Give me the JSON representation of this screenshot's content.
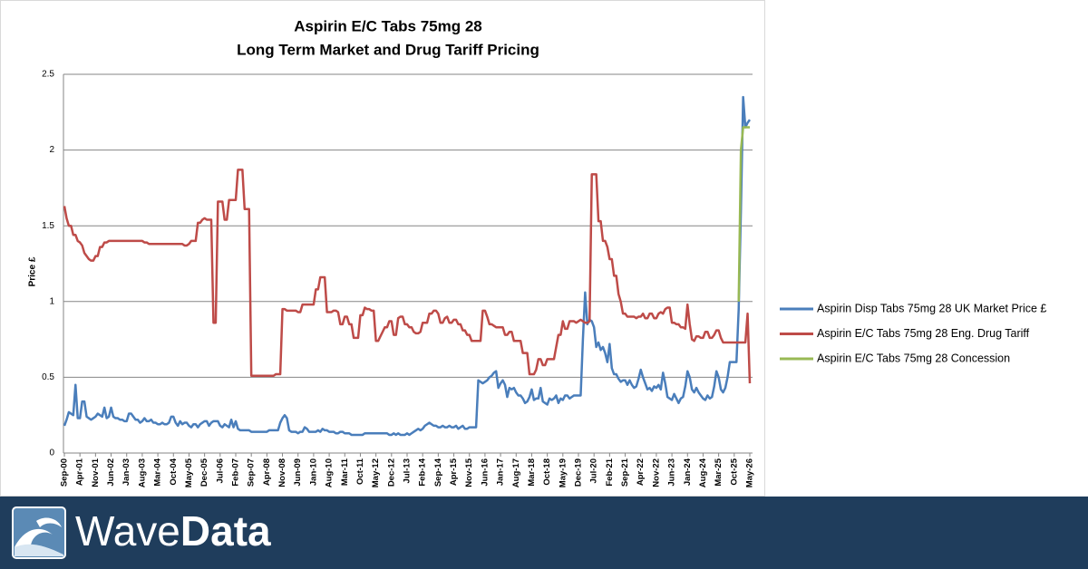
{
  "chart_data": {
    "type": "line",
    "title": [
      "Aspirin E/C Tabs 75mg 28",
      "Long Term Market and Drug Tariff Pricing"
    ],
    "y_label": "Price £",
    "ylim": [
      0,
      2.5
    ],
    "yticks": [
      0,
      0.5,
      1,
      1.5,
      2,
      2.5
    ],
    "grid": true,
    "legend": "right",
    "categories": [
      "Sep-00",
      null,
      null,
      null,
      null,
      null,
      null,
      "Apr-01",
      null,
      null,
      null,
      null,
      null,
      null,
      "Nov-01",
      null,
      null,
      null,
      null,
      null,
      null,
      "Jun-02",
      null,
      null,
      null,
      null,
      null,
      null,
      "Jan-03",
      null,
      null,
      null,
      null,
      null,
      null,
      "Aug-03",
      null,
      null,
      null,
      null,
      null,
      null,
      "Mar-04",
      null,
      null,
      null,
      null,
      null,
      null,
      "Oct-04",
      null,
      null,
      null,
      null,
      null,
      null,
      "May-05",
      null,
      null,
      null,
      null,
      null,
      null,
      "Dec-05",
      null,
      null,
      null,
      null,
      null,
      null,
      "Jul-06",
      null,
      null,
      null,
      null,
      null,
      null,
      "Feb-07",
      null,
      null,
      null,
      null,
      null,
      null,
      "Sep-07",
      null,
      null,
      null,
      null,
      null,
      null,
      "Apr-08",
      null,
      null,
      null,
      null,
      null,
      null,
      "Nov-08",
      null,
      null,
      null,
      null,
      null,
      null,
      "Jun-09",
      null,
      null,
      null,
      null,
      null,
      null,
      "Jan-10",
      null,
      null,
      null,
      null,
      null,
      null,
      "Aug-10",
      null,
      null,
      null,
      null,
      null,
      null,
      "Mar-11",
      null,
      null,
      null,
      null,
      null,
      null,
      "Oct-11",
      null,
      null,
      null,
      null,
      null,
      null,
      "May-12",
      null,
      null,
      null,
      null,
      null,
      null,
      "Dec-12",
      null,
      null,
      null,
      null,
      null,
      null,
      "Jul-13",
      null,
      null,
      null,
      null,
      null,
      null,
      "Feb-14",
      null,
      null,
      null,
      null,
      null,
      null,
      "Sep-14",
      null,
      null,
      null,
      null,
      null,
      null,
      "Apr-15",
      null,
      null,
      null,
      null,
      null,
      null,
      "Nov-15",
      null,
      null,
      null,
      null,
      null,
      null,
      "Jun-16",
      null,
      null,
      null,
      null,
      null,
      null,
      "Jan-17",
      null,
      null,
      null,
      null,
      null,
      null,
      "Aug-17",
      null,
      null,
      null,
      null,
      null,
      null,
      "Mar-18",
      null,
      null,
      null,
      null,
      null,
      null,
      "Oct-18",
      null,
      null,
      null,
      null,
      null,
      null,
      "May-19",
      null,
      null,
      null,
      null,
      null,
      null,
      "Dec-19",
      null,
      null,
      null,
      null,
      null,
      null,
      "Jul-20",
      null,
      null,
      null,
      null,
      null,
      null,
      "Feb-21",
      null,
      null,
      null,
      null,
      null,
      null,
      "Sep-21",
      null,
      null,
      null,
      null,
      null,
      null,
      "Apr-22",
      null,
      null,
      null,
      null,
      null,
      null,
      "Nov-22",
      null,
      null,
      null,
      null,
      null,
      null,
      "Jun-23",
      null,
      null,
      null,
      null,
      null,
      null,
      "Jan-24",
      null,
      null,
      null,
      null,
      null,
      null,
      "Aug-24",
      null,
      null,
      null,
      null,
      null,
      null,
      "Mar-25",
      null,
      null,
      null,
      null,
      null,
      null,
      "Oct-25",
      null,
      null,
      null,
      null,
      null,
      null,
      "May-26"
    ],
    "series": [
      {
        "name": "Aspirin Disp Tabs 75mg 28 UK Market Price £",
        "color": "#4a7ebb",
        "values": [
          0.18,
          0.22,
          0.27,
          0.26,
          0.25,
          0.45,
          0.23,
          0.23,
          0.34,
          0.34,
          0.24,
          0.23,
          0.22,
          0.23,
          0.24,
          0.26,
          0.25,
          0.24,
          0.3,
          0.23,
          0.24,
          0.3,
          0.24,
          0.23,
          0.23,
          0.22,
          0.22,
          0.21,
          0.21,
          0.26,
          0.26,
          0.24,
          0.22,
          0.22,
          0.2,
          0.21,
          0.23,
          0.21,
          0.21,
          0.22,
          0.2,
          0.2,
          0.19,
          0.19,
          0.2,
          0.19,
          0.19,
          0.2,
          0.24,
          0.24,
          0.2,
          0.18,
          0.21,
          0.19,
          0.2,
          0.2,
          0.18,
          0.17,
          0.19,
          0.19,
          0.17,
          0.19,
          0.2,
          0.21,
          0.21,
          0.18,
          0.2,
          0.21,
          0.21,
          0.21,
          0.18,
          0.17,
          0.19,
          0.18,
          0.17,
          0.22,
          0.17,
          0.21,
          0.16,
          0.15,
          0.15,
          0.15,
          0.15,
          0.15,
          0.14,
          0.14,
          0.14,
          0.14,
          0.14,
          0.14,
          0.14,
          0.14,
          0.15,
          0.15,
          0.15,
          0.15,
          0.15,
          0.2,
          0.23,
          0.25,
          0.23,
          0.15,
          0.14,
          0.14,
          0.14,
          0.13,
          0.14,
          0.14,
          0.17,
          0.16,
          0.14,
          0.14,
          0.14,
          0.14,
          0.15,
          0.14,
          0.16,
          0.15,
          0.15,
          0.14,
          0.14,
          0.14,
          0.13,
          0.13,
          0.14,
          0.14,
          0.13,
          0.13,
          0.13,
          0.12,
          0.12,
          0.12,
          0.12,
          0.12,
          0.12,
          0.13,
          0.13,
          0.13,
          0.13,
          0.13,
          0.13,
          0.13,
          0.13,
          0.13,
          0.13,
          0.13,
          0.12,
          0.12,
          0.13,
          0.12,
          0.13,
          0.12,
          0.12,
          0.12,
          0.13,
          0.12,
          0.13,
          0.14,
          0.15,
          0.16,
          0.15,
          0.16,
          0.18,
          0.19,
          0.2,
          0.19,
          0.18,
          0.18,
          0.17,
          0.17,
          0.18,
          0.17,
          0.17,
          0.18,
          0.17,
          0.17,
          0.18,
          0.16,
          0.17,
          0.18,
          0.16,
          0.16,
          0.17,
          0.17,
          0.17,
          0.17,
          0.48,
          0.47,
          0.46,
          0.47,
          0.48,
          0.5,
          0.51,
          0.53,
          0.54,
          0.43,
          0.46,
          0.48,
          0.45,
          0.37,
          0.43,
          0.42,
          0.43,
          0.4,
          0.38,
          0.38,
          0.36,
          0.33,
          0.34,
          0.37,
          0.42,
          0.35,
          0.36,
          0.36,
          0.43,
          0.34,
          0.33,
          0.32,
          0.36,
          0.35,
          0.36,
          0.38,
          0.33,
          0.36,
          0.35,
          0.38,
          0.38,
          0.36,
          0.37,
          0.38,
          0.38,
          0.38,
          0.38,
          0.75,
          1.06,
          0.85,
          0.88,
          0.87,
          0.83,
          0.7,
          0.73,
          0.68,
          0.7,
          0.66,
          0.6,
          0.72,
          0.56,
          0.52,
          0.52,
          0.49,
          0.47,
          0.48,
          0.48,
          0.45,
          0.48,
          0.45,
          0.43,
          0.44,
          0.49,
          0.55,
          0.5,
          0.46,
          0.42,
          0.43,
          0.41,
          0.44,
          0.43,
          0.45,
          0.42,
          0.53,
          0.46,
          0.37,
          0.36,
          0.35,
          0.39,
          0.36,
          0.33,
          0.36,
          0.37,
          0.44,
          0.54,
          0.5,
          0.42,
          0.4,
          0.43,
          0.4,
          0.38,
          0.36,
          0.35,
          0.38,
          0.36,
          0.37,
          0.44,
          0.54,
          0.5,
          0.42,
          0.4,
          0.43,
          0.5,
          0.6,
          0.6,
          0.6,
          0.6,
          0.95,
          1.6,
          2.35,
          2.15,
          2.18,
          2.2
        ]
      },
      {
        "name": "Aspirin E/C Tabs 75mg 28 Eng. Drug Tariff",
        "color": "#be4b48",
        "values": [
          1.63,
          1.55,
          1.5,
          1.5,
          1.44,
          1.44,
          1.4,
          1.39,
          1.37,
          1.32,
          1.3,
          1.28,
          1.27,
          1.27,
          1.3,
          1.3,
          1.36,
          1.36,
          1.39,
          1.39,
          1.4,
          1.4,
          1.4,
          1.4,
          1.4,
          1.4,
          1.4,
          1.4,
          1.4,
          1.4,
          1.4,
          1.4,
          1.4,
          1.4,
          1.4,
          1.4,
          1.39,
          1.39,
          1.38,
          1.38,
          1.38,
          1.38,
          1.38,
          1.38,
          1.38,
          1.38,
          1.38,
          1.38,
          1.38,
          1.38,
          1.38,
          1.38,
          1.38,
          1.38,
          1.37,
          1.37,
          1.38,
          1.4,
          1.4,
          1.4,
          1.52,
          1.52,
          1.54,
          1.55,
          1.54,
          1.54,
          1.54,
          0.86,
          0.86,
          1.66,
          1.66,
          1.66,
          1.54,
          1.54,
          1.67,
          1.67,
          1.67,
          1.67,
          1.87,
          1.87,
          1.87,
          1.61,
          1.61,
          1.61,
          0.51,
          0.51,
          0.51,
          0.51,
          0.51,
          0.51,
          0.51,
          0.51,
          0.51,
          0.51,
          0.51,
          0.52,
          0.52,
          0.52,
          0.95,
          0.95,
          0.94,
          0.94,
          0.94,
          0.94,
          0.94,
          0.93,
          0.93,
          0.98,
          0.98,
          0.98,
          0.98,
          0.98,
          0.98,
          1.08,
          1.08,
          1.16,
          1.16,
          1.16,
          0.93,
          0.93,
          0.93,
          0.94,
          0.94,
          0.93,
          0.85,
          0.85,
          0.9,
          0.9,
          0.85,
          0.85,
          0.76,
          0.76,
          0.76,
          0.91,
          0.91,
          0.96,
          0.95,
          0.95,
          0.94,
          0.94,
          0.74,
          0.74,
          0.77,
          0.8,
          0.83,
          0.83,
          0.87,
          0.87,
          0.78,
          0.78,
          0.89,
          0.9,
          0.9,
          0.85,
          0.85,
          0.83,
          0.83,
          0.8,
          0.79,
          0.79,
          0.8,
          0.86,
          0.86,
          0.86,
          0.92,
          0.92,
          0.94,
          0.94,
          0.92,
          0.86,
          0.86,
          0.89,
          0.9,
          0.86,
          0.86,
          0.88,
          0.88,
          0.85,
          0.85,
          0.81,
          0.81,
          0.78,
          0.78,
          0.74,
          0.74,
          0.74,
          0.74,
          0.74,
          0.94,
          0.94,
          0.9,
          0.85,
          0.85,
          0.84,
          0.83,
          0.83,
          0.83,
          0.83,
          0.78,
          0.78,
          0.8,
          0.8,
          0.74,
          0.74,
          0.74,
          0.74,
          0.66,
          0.66,
          0.66,
          0.52,
          0.52,
          0.52,
          0.55,
          0.62,
          0.62,
          0.58,
          0.58,
          0.62,
          0.62,
          0.62,
          0.62,
          0.7,
          0.78,
          0.78,
          0.87,
          0.82,
          0.82,
          0.87,
          0.87,
          0.87,
          0.86,
          0.87,
          0.88,
          0.87,
          0.86,
          0.86,
          0.87,
          1.84,
          1.84,
          1.84,
          1.53,
          1.53,
          1.4,
          1.4,
          1.36,
          1.28,
          1.28,
          1.17,
          1.17,
          1.05,
          1.0,
          0.92,
          0.92,
          0.9,
          0.9,
          0.9,
          0.9,
          0.89,
          0.9,
          0.9,
          0.92,
          0.89,
          0.89,
          0.92,
          0.92,
          0.89,
          0.89,
          0.92,
          0.93,
          0.92,
          0.95,
          0.96,
          0.96,
          0.86,
          0.86,
          0.85,
          0.85,
          0.83,
          0.83,
          0.82,
          0.98,
          0.85,
          0.75,
          0.74,
          0.77,
          0.77,
          0.76,
          0.76,
          0.8,
          0.8,
          0.76,
          0.76,
          0.78,
          0.81,
          0.81,
          0.76,
          0.73,
          0.73,
          0.73,
          0.73,
          0.73,
          0.73,
          0.73,
          0.73,
          0.73,
          0.73,
          0.73,
          0.92,
          0.46
        ]
      },
      {
        "name": "Aspirin E/C Tabs 75mg 28 Concession",
        "color": "#98b954",
        "values": [
          null,
          null,
          null,
          null,
          null,
          null,
          null,
          null,
          null,
          null,
          null,
          null,
          null,
          null,
          null,
          null,
          null,
          null,
          null,
          null,
          null,
          null,
          null,
          null,
          null,
          null,
          null,
          null,
          null,
          null,
          null,
          null,
          null,
          null,
          null,
          null,
          null,
          null,
          null,
          null,
          null,
          null,
          null,
          null,
          null,
          null,
          null,
          null,
          null,
          null,
          null,
          null,
          null,
          null,
          null,
          null,
          null,
          null,
          null,
          null,
          null,
          null,
          null,
          null,
          null,
          null,
          null,
          null,
          null,
          null,
          null,
          null,
          null,
          null,
          null,
          null,
          null,
          null,
          null,
          null,
          null,
          null,
          null,
          null,
          null,
          null,
          null,
          null,
          null,
          null,
          null,
          null,
          null,
          null,
          null,
          null,
          null,
          null,
          null,
          null,
          null,
          null,
          null,
          null,
          null,
          null,
          null,
          null,
          null,
          null,
          null,
          null,
          null,
          null,
          null,
          null,
          null,
          null,
          null,
          null,
          null,
          null,
          null,
          null,
          null,
          null,
          null,
          null,
          null,
          null,
          null,
          null,
          null,
          null,
          null,
          null,
          null,
          null,
          null,
          null,
          null,
          null,
          null,
          null,
          null,
          null,
          null,
          null,
          null,
          null,
          null,
          null,
          null,
          null,
          null,
          null,
          null,
          null,
          null,
          null,
          null,
          null,
          null,
          null,
          null,
          null,
          null,
          null,
          null,
          null,
          null,
          null,
          null,
          null,
          null,
          null,
          null,
          null,
          null,
          null,
          null,
          null,
          null,
          null,
          null,
          null,
          null,
          null,
          null,
          null,
          null,
          null,
          null,
          null,
          null,
          null,
          null,
          null,
          null,
          null,
          null,
          null,
          null,
          null,
          null,
          null,
          null,
          null,
          null,
          null,
          null,
          null,
          null,
          null,
          null,
          null,
          null,
          null,
          null,
          null,
          null,
          null,
          null,
          null,
          null,
          null,
          null,
          null,
          null,
          null,
          null,
          null,
          null,
          null,
          null,
          null,
          null,
          null,
          null,
          null,
          null,
          null,
          null,
          null,
          null,
          null,
          null,
          null,
          null,
          null,
          null,
          null,
          null,
          null,
          null,
          null,
          null,
          null,
          null,
          null,
          null,
          null,
          null,
          null,
          null,
          null,
          null,
          null,
          null,
          null,
          null,
          null,
          null,
          null,
          null,
          null,
          null,
          null,
          null,
          null,
          null,
          null,
          null,
          null,
          null,
          null,
          null,
          null,
          null,
          null,
          null,
          null,
          null,
          null,
          null,
          null,
          null,
          null,
          null,
          null,
          null,
          null,
          null,
          1.0,
          2.0,
          2.15,
          2.15,
          2.15,
          2.15
        ]
      }
    ]
  },
  "branding": {
    "wave": "Wave",
    "data": "Data"
  }
}
